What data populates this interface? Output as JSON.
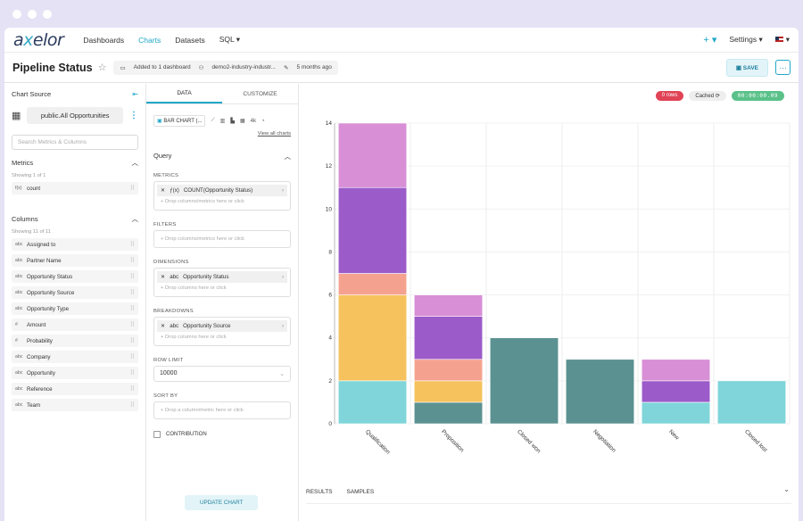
{
  "nav": {
    "logo_pre": "a",
    "logo_x": "x",
    "logo_post": "elor",
    "items": [
      "Dashboards",
      "Charts",
      "Datasets",
      "SQL ▾"
    ],
    "plus": "+ ▾",
    "settings": "Settings ▾",
    "lang": "▾"
  },
  "header": {
    "title": "Pipeline Status",
    "added": "Added to 1 dashboard",
    "owner": "demo2-industry-industr...",
    "modified": "5 months ago",
    "save": "SAVE",
    "more": "···"
  },
  "source": {
    "label": "Chart Source",
    "dataset": "public.All Opportunities",
    "search_placeholder": "Search Metrics & Columns",
    "metrics_label": "Metrics",
    "metrics_showing": "Showing 1 of 1",
    "metrics": [
      {
        "icon": "f(x)",
        "name": "count"
      }
    ],
    "columns_label": "Columns",
    "columns_showing": "Showing 11 of 11",
    "columns": [
      {
        "icon": "abc",
        "name": "Assigned to"
      },
      {
        "icon": "abc",
        "name": "Partner Name"
      },
      {
        "icon": "abc",
        "name": "Opportunity Status"
      },
      {
        "icon": "abc",
        "name": "Opportunity Source"
      },
      {
        "icon": "abc",
        "name": "Opportunity Type"
      },
      {
        "icon": "#",
        "name": "Amount"
      },
      {
        "icon": "#",
        "name": "Probability"
      },
      {
        "icon": "abc",
        "name": "Company"
      },
      {
        "icon": "abc",
        "name": "Opportunity"
      },
      {
        "icon": "abc",
        "name": "Reference"
      },
      {
        "icon": "abc",
        "name": "Team"
      }
    ]
  },
  "config": {
    "tab_data": "DATA",
    "tab_customize": "CUSTOMIZE",
    "chart_type": "BAR CHART (...",
    "view_all": "View all charts",
    "query": "Query",
    "metrics_label": "METRICS",
    "metric_value": "COUNT(Opportunity Status)",
    "drop_metrics": "Drop columns/metrics here or click",
    "filters_label": "FILTERS",
    "drop_filters": "Drop columns/metrics here or click",
    "dimensions_label": "DIMENSIONS",
    "dimension_value": "Opportunity Status",
    "drop_columns": "Drop columns here or click",
    "breakdowns_label": "BREAKDOWNS",
    "breakdown_value": "Opportunity Source",
    "drop_columns2": "Drop columns here or click",
    "row_limit_label": "ROW LIMIT",
    "row_limit": "10000",
    "sort_label": "SORT BY",
    "sort_placeholder": "Drop a column/metric here or click",
    "contribution": "CONTRIBUTION",
    "update": "UPDATE CHART"
  },
  "status": {
    "rows": "0 rows",
    "cached": "Cached ⟳",
    "timer": "00:00:00.09"
  },
  "bottom": {
    "results": "RESULTS",
    "samples": "SAMPLES"
  },
  "colors": {
    "teal": "#7fd5d9",
    "yellow": "#f6c25d",
    "salmon": "#f4a28f",
    "purple": "#9b5bc9",
    "pink": "#d88fd6",
    "darkteal": "#5b9191"
  },
  "chart_data": {
    "type": "bar",
    "stacked": true,
    "categories": [
      "Qualification",
      "Proposition",
      "Closed won",
      "Negotiation",
      "New",
      "Closed lost"
    ],
    "series": [
      {
        "color": "#5b9191",
        "values": [
          0,
          1,
          4,
          3,
          0,
          0
        ]
      },
      {
        "color": "#7fd5d9",
        "values": [
          2,
          0,
          0,
          0,
          1,
          2
        ]
      },
      {
        "color": "#f6c25d",
        "values": [
          4,
          1,
          0,
          0,
          0,
          0
        ]
      },
      {
        "color": "#f4a28f",
        "values": [
          1,
          1,
          0,
          0,
          0,
          0
        ]
      },
      {
        "color": "#9b5bc9",
        "values": [
          4,
          2,
          0,
          0,
          1,
          0
        ]
      },
      {
        "color": "#d88fd6",
        "values": [
          3,
          1,
          0,
          0,
          1,
          0
        ]
      }
    ],
    "ylim": [
      0,
      14
    ],
    "yticks": [
      0,
      2,
      4,
      6,
      8,
      10,
      12,
      14
    ],
    "grid": true
  }
}
